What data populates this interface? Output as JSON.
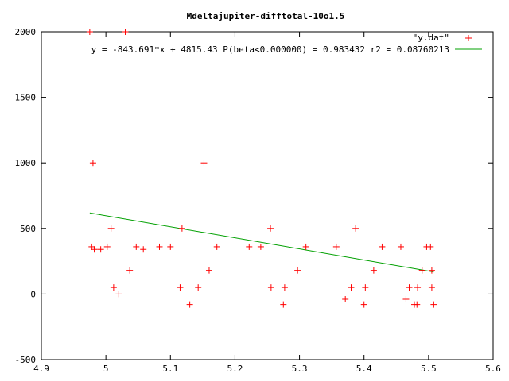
{
  "chart_data": {
    "type": "scatter",
    "title": "Mdeltajupiter-difftotal-10o1.5",
    "xlabel": "",
    "ylabel": "",
    "xlim": [
      4.9,
      5.6
    ],
    "ylim": [
      -500,
      2000
    ],
    "xticks": [
      "4.9",
      "5",
      "5.1",
      "5.2",
      "5.3",
      "5.4",
      "5.5",
      "5.6"
    ],
    "yticks": [
      "-500",
      "0",
      "500",
      "1000",
      "1500",
      "2000"
    ],
    "legend_position": "top-right",
    "grid": false,
    "series": [
      {
        "name": "\"y.dat\"",
        "type": "scatter",
        "marker": "+",
        "color": "#ff0000",
        "points": [
          [
            4.975,
            2000
          ],
          [
            5.03,
            2000
          ],
          [
            4.98,
            1000
          ],
          [
            4.978,
            360
          ],
          [
            4.982,
            340
          ],
          [
            4.992,
            340
          ],
          [
            5.002,
            360
          ],
          [
            5.008,
            500
          ],
          [
            5.012,
            50
          ],
          [
            5.02,
            0
          ],
          [
            5.037,
            180
          ],
          [
            5.047,
            360
          ],
          [
            5.058,
            340
          ],
          [
            5.083,
            360
          ],
          [
            5.1,
            360
          ],
          [
            5.115,
            50
          ],
          [
            5.118,
            500
          ],
          [
            5.13,
            -80
          ],
          [
            5.143,
            50
          ],
          [
            5.152,
            1000
          ],
          [
            5.16,
            180
          ],
          [
            5.172,
            360
          ],
          [
            5.222,
            360
          ],
          [
            5.24,
            360
          ],
          [
            5.255,
            500
          ],
          [
            5.256,
            50
          ],
          [
            5.275,
            -80
          ],
          [
            5.277,
            50
          ],
          [
            5.297,
            180
          ],
          [
            5.31,
            360
          ],
          [
            5.357,
            360
          ],
          [
            5.371,
            -40
          ],
          [
            5.38,
            50
          ],
          [
            5.387,
            500
          ],
          [
            5.4,
            -80
          ],
          [
            5.402,
            50
          ],
          [
            5.415,
            180
          ],
          [
            5.428,
            360
          ],
          [
            5.457,
            360
          ],
          [
            5.465,
            -40
          ],
          [
            5.47,
            50
          ],
          [
            5.478,
            -80
          ],
          [
            5.482,
            -80
          ],
          [
            5.483,
            50
          ],
          [
            5.49,
            180
          ],
          [
            5.497,
            360
          ],
          [
            5.503,
            360
          ],
          [
            5.505,
            180
          ],
          [
            5.505,
            50
          ],
          [
            5.508,
            -80
          ]
        ]
      },
      {
        "name": "y = -843.691*x + 4815.43 P(beta<0.000000) = 0.983432 r2 = 0.08760213",
        "type": "line",
        "color": "#00a000",
        "slope": -843.691,
        "intercept": 4815.43,
        "x_range": [
          4.975,
          5.508
        ]
      }
    ]
  }
}
